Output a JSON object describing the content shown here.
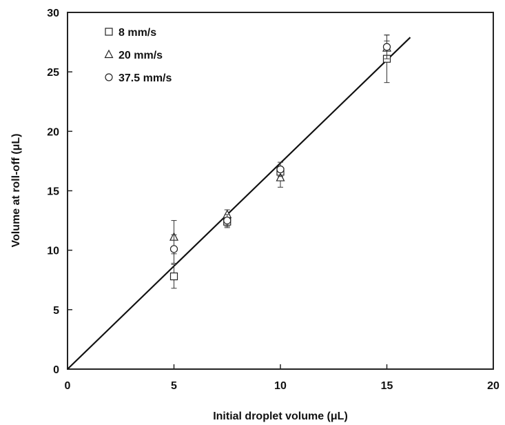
{
  "chart_data": {
    "type": "scatter",
    "xlabel": "Initial droplet volume (μL)",
    "ylabel": "Volume at roll-off (μL)",
    "xlim": [
      0,
      20
    ],
    "ylim": [
      0,
      30
    ],
    "x_ticks": [
      "0",
      "5",
      "10",
      "15",
      "20"
    ],
    "y_ticks": [
      "0",
      "5",
      "10",
      "15",
      "20",
      "25",
      "30"
    ],
    "grid": false,
    "legend_position": "top-left",
    "series": [
      {
        "name": "8 mm/s",
        "marker": "square",
        "points": [
          {
            "x": 5,
            "y": 7.8,
            "err": 1.0
          },
          {
            "x": 7.5,
            "y": 12.4,
            "err": 0.5
          },
          {
            "x": 10,
            "y": 16.6,
            "err": 0.4
          },
          {
            "x": 15,
            "y": 26.1,
            "err": 2.0
          }
        ]
      },
      {
        "name": "20 mm/s",
        "marker": "triangle",
        "points": [
          {
            "x": 5,
            "y": 11.1,
            "err": 1.4
          },
          {
            "x": 7.5,
            "y": 13.0,
            "err": 0.4
          },
          {
            "x": 10,
            "y": 16.1,
            "err": 0.8
          },
          {
            "x": 15,
            "y": 27.0,
            "err": 0.6
          }
        ]
      },
      {
        "name": "37.5 mm/s",
        "marker": "circle",
        "points": [
          {
            "x": 5,
            "y": 10.1,
            "err": 1.2
          },
          {
            "x": 7.5,
            "y": 12.5,
            "err": 0.5
          },
          {
            "x": 10,
            "y": 16.8,
            "err": 0.6
          },
          {
            "x": 15,
            "y": 27.1,
            "err": 1.0
          }
        ]
      }
    ],
    "fit_line": {
      "x": [
        0,
        16.1
      ],
      "y": [
        0,
        27.9
      ]
    }
  }
}
